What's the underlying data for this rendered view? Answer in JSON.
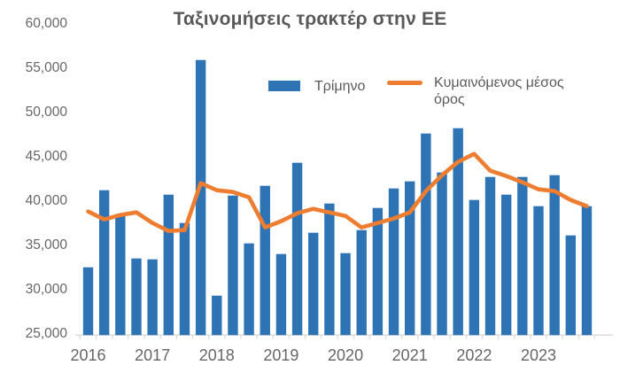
{
  "title": "Ταξινομήσεις τρακτέρ στην ΕΕ",
  "legend": {
    "bars_label": "Τρίμηνο",
    "line_label": "Κυμαινόμενος μέσος όρος"
  },
  "colors": {
    "bar": "#2E74B5",
    "line": "#ED7D31",
    "title_text": "#595959",
    "axis_text": "#666666",
    "axis_line": "#D9D9D9",
    "background": "#FFFFFF"
  },
  "chart_data": {
    "type": "bar",
    "title": "Ταξινομήσεις τρακτέρ στην ΕΕ",
    "xlabel": "",
    "ylabel": "",
    "grid": false,
    "legend_position": "top-center",
    "ylim": [
      25000,
      60000
    ],
    "yticks": [
      25000,
      30000,
      35000,
      40000,
      45000,
      50000,
      55000,
      60000
    ],
    "x_year_labels": [
      "2016",
      "2017",
      "2018",
      "2019",
      "2020",
      "2021",
      "2022",
      "2023"
    ],
    "categories": [
      "2016 Q1",
      "2016 Q2",
      "2016 Q3",
      "2016 Q4",
      "2017 Q1",
      "2017 Q2",
      "2017 Q3",
      "2017 Q4",
      "2018 Q1",
      "2018 Q2",
      "2018 Q3",
      "2018 Q4",
      "2019 Q1",
      "2019 Q2",
      "2019 Q3",
      "2019 Q4",
      "2020 Q1",
      "2020 Q2",
      "2020 Q3",
      "2020 Q4",
      "2021 Q1",
      "2021 Q2",
      "2021 Q3",
      "2021 Q4",
      "2022 Q1",
      "2022 Q2",
      "2022 Q3",
      "2022 Q4",
      "2023 Q1",
      "2023 Q2",
      "2023 Q3",
      "2023 Q4"
    ],
    "series": [
      {
        "name": "Τρίμηνο",
        "type": "bar",
        "color": "#2E74B5",
        "values": [
          32400,
          41100,
          38200,
          33400,
          33300,
          40600,
          37400,
          55800,
          29200,
          40500,
          35100,
          41600,
          33900,
          44200,
          36300,
          39600,
          34000,
          36600,
          39100,
          41300,
          42100,
          47500,
          43100,
          48100,
          40000,
          42600,
          40600,
          42600,
          39300,
          42800,
          36000,
          39300
        ]
      },
      {
        "name": "Κυμαινόμενος μέσος όρος",
        "type": "line",
        "color": "#ED7D31",
        "values": [
          38700,
          37800,
          38300,
          38600,
          37400,
          36500,
          36600,
          41900,
          41100,
          40900,
          40300,
          36900,
          37600,
          38500,
          39000,
          38600,
          38200,
          36900,
          37400,
          37900,
          38600,
          41000,
          42800,
          44300,
          45200,
          43300,
          42700,
          42000,
          41200,
          41000,
          40000,
          39300
        ]
      }
    ]
  }
}
